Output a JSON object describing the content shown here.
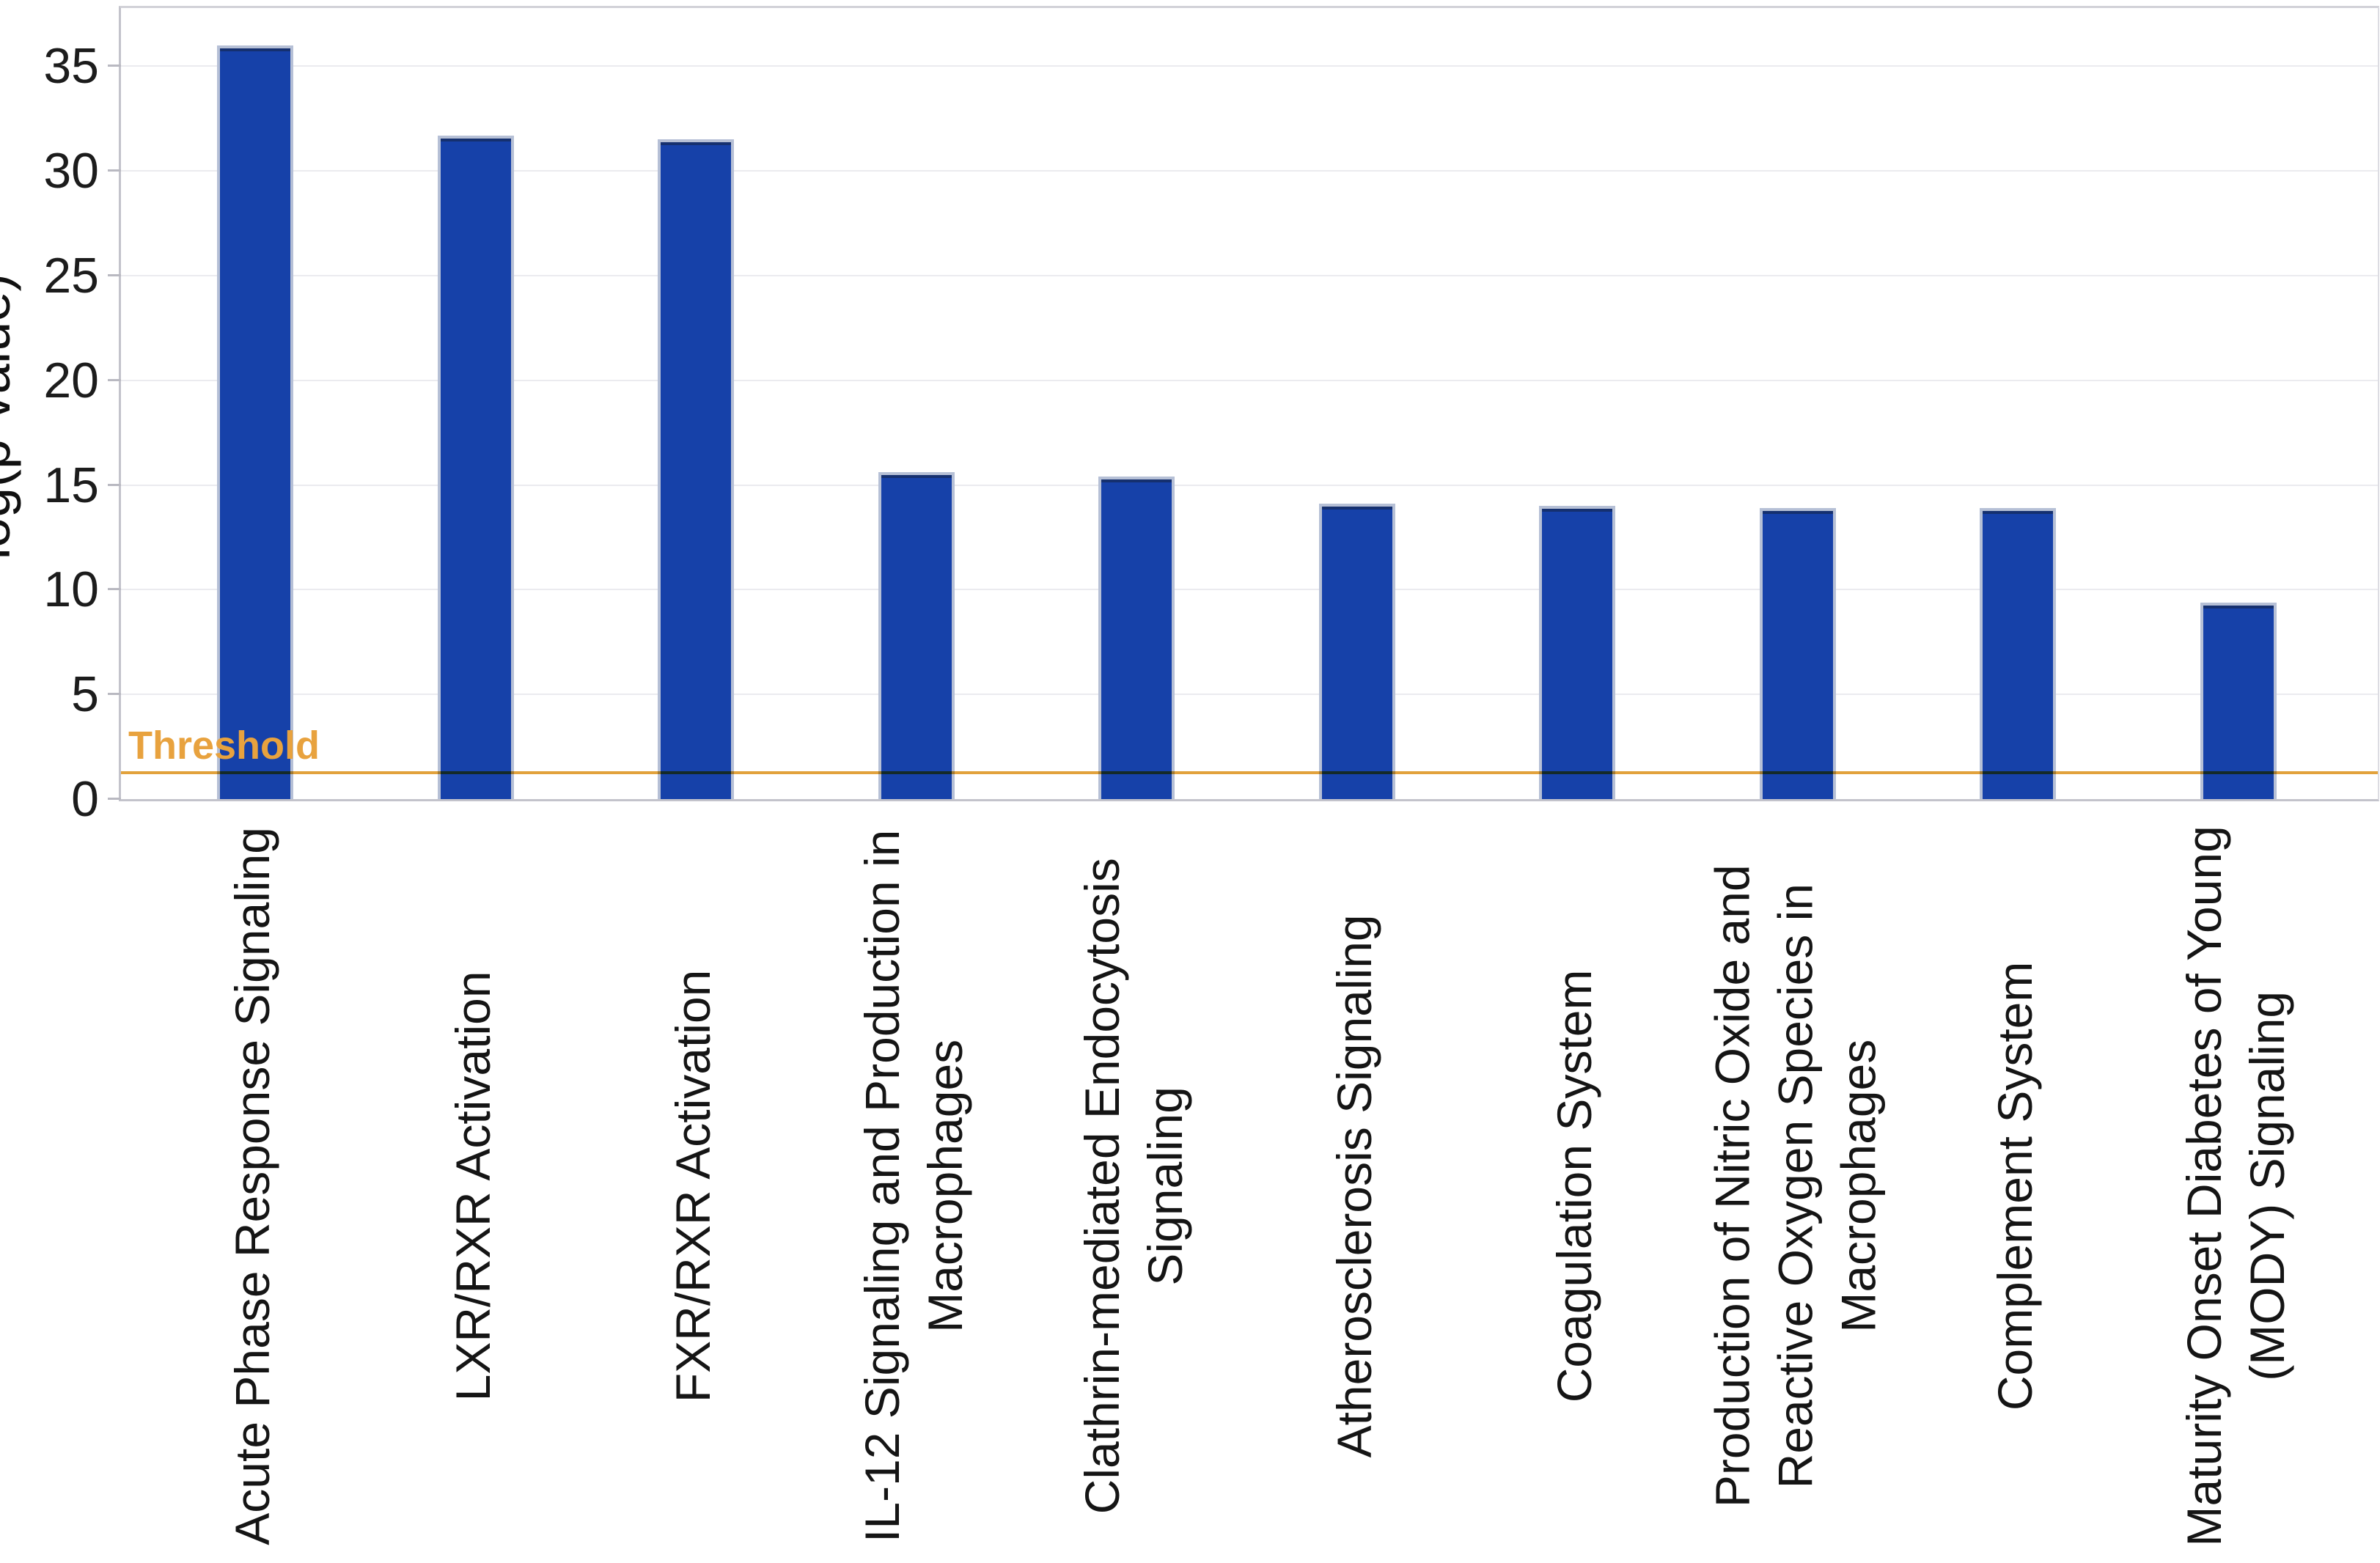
{
  "chart_data": {
    "type": "bar",
    "title": "",
    "ylabel": "-log(p-value)",
    "xlabel": "",
    "categories": [
      "Acute Phase Response Signaling",
      "LXR/RXR Activation",
      "FXR/RXR Activation",
      "IL-12 Signaling and Production in Macrophages",
      "Clathrin-mediated Endocytosis Signaling",
      "Atherosclerosis Signaling",
      "Coagulation System",
      "Production of Nitric Oxide and Reactive Oxygen Species in Macrophages",
      "Complement System",
      "Maturity Onset Diabetes of Young (MODY) Signaling"
    ],
    "values": [
      36.0,
      31.7,
      31.5,
      15.6,
      15.4,
      14.1,
      14.0,
      13.9,
      13.9,
      9.4
    ],
    "yticks": [
      0,
      5,
      10,
      15,
      20,
      25,
      30,
      35
    ],
    "ylim": [
      0,
      37.8
    ],
    "grid": "horizontal",
    "legend_position": "none",
    "threshold": {
      "label": "Threshold",
      "value": 1.25,
      "line_color": "#E2A23C",
      "label_color": "#E8A23E"
    },
    "bar_fill_color": "#1641A9",
    "bar_border_color": "#B6C0D6",
    "gridline_color": "#EBEBEF",
    "text_color": "#1C1C1C"
  }
}
